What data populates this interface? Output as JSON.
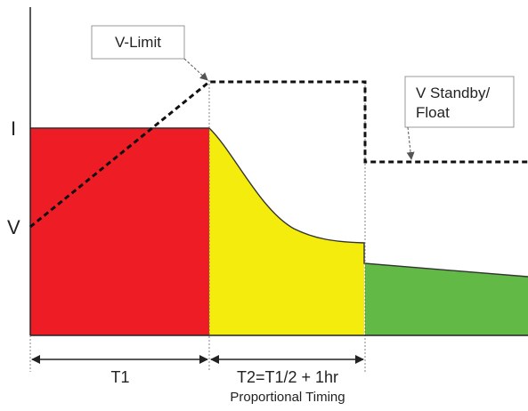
{
  "labels": {
    "current_axis": "I",
    "voltage_axis": "V",
    "v_limit": "V-Limit",
    "v_standby_line1": "V Standby/",
    "v_standby_line2": "Float",
    "t1": "T1",
    "t2": "T2=T1/2 + 1hr",
    "proportional_timing": "Proportional Timing"
  },
  "colors": {
    "stage1_fill": "#ee1c25",
    "stage2_fill": "#f4ec0c",
    "stage3_fill": "#62b946",
    "voltage_line": "#111111",
    "axis": "#222222",
    "callout_border": "#999999"
  }
}
